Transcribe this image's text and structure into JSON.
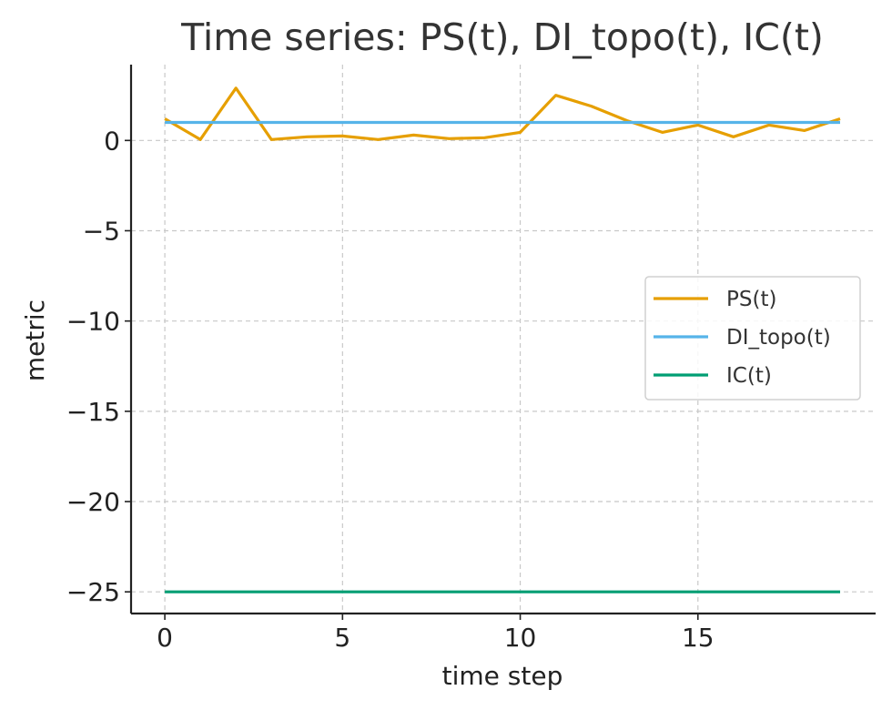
{
  "chart_data": {
    "type": "line",
    "title": "Time series: PS(t), DI_topo(t), IC(t)",
    "xlabel": "time step",
    "ylabel": "metric",
    "xlim": [
      -0.95,
      20
    ],
    "ylim": [
      -26.2,
      4.2
    ],
    "xticks": [
      0,
      5,
      10,
      15
    ],
    "xtick_labels": [
      "0",
      "5",
      "10",
      "15"
    ],
    "yticks": [
      0,
      -5,
      -10,
      -15,
      -20,
      -25
    ],
    "ytick_labels": [
      "0",
      "−5",
      "−10",
      "−15",
      "−20",
      "−25"
    ],
    "grid": true,
    "legend_position": "center-right",
    "x": [
      0,
      1,
      2,
      3,
      4,
      5,
      6,
      7,
      8,
      9,
      10,
      11,
      12,
      13,
      14,
      15,
      16,
      17,
      18,
      19
    ],
    "series": [
      {
        "name": "PS(t)",
        "color": "#E69F00",
        "values": [
          1.2,
          0.05,
          2.9,
          0.05,
          0.2,
          0.25,
          0.05,
          0.3,
          0.1,
          0.15,
          0.45,
          2.5,
          1.9,
          1.1,
          0.45,
          0.85,
          0.2,
          0.85,
          0.55,
          1.2
        ]
      },
      {
        "name": "DI_topo(t)",
        "color": "#56B4E9",
        "values": [
          1,
          1,
          1,
          1,
          1,
          1,
          1,
          1,
          1,
          1,
          1,
          1,
          1,
          1,
          1,
          1,
          1,
          1,
          1,
          1
        ]
      },
      {
        "name": "IC(t)",
        "color": "#009E73",
        "values": [
          -25,
          -25,
          -25,
          -25,
          -25,
          -25,
          -25,
          -25,
          -25,
          -25,
          -25,
          -25,
          -25,
          -25,
          -25,
          -25,
          -25,
          -25,
          -25,
          -25
        ]
      }
    ]
  }
}
